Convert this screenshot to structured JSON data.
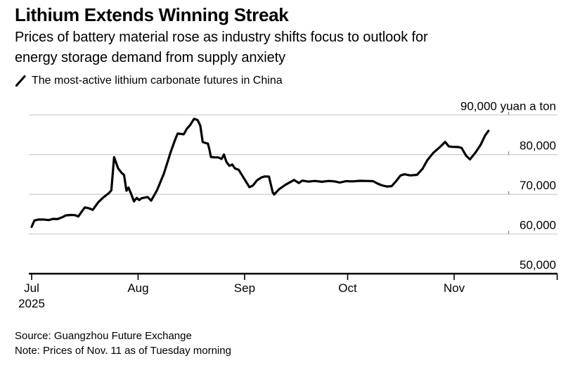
{
  "header": {
    "title": "Lithium Extends Winning Streak",
    "subtitle_lines": [
      "Prices of battery material rose as industry shifts focus to outlook for",
      "energy storage demand from supply anxiety"
    ],
    "legend_label": "The most-active lithium carbonate futures in China"
  },
  "footer": {
    "source": "Source: Guangzhou Future Exchange",
    "note": "Note: Prices of Nov. 11 as of Tuesday morning"
  },
  "chart_data": {
    "type": "line",
    "title": "Lithium Extends Winning Streak",
    "ylabel_unit": "yuan a ton",
    "grid": true,
    "legend_position": "top-left",
    "colors": {
      "line": "#000000",
      "grid": "#cccccc",
      "grid_edge_tick": "#8a8a8a",
      "axis": "#000000",
      "text": "#000000",
      "background": "#ffffff"
    },
    "y_axis": {
      "min": 50000,
      "max": 90000,
      "ticks": [
        50000,
        60000,
        70000,
        80000,
        90000
      ],
      "unit_suffix": " yuan a ton",
      "side": "right"
    },
    "x_axis": {
      "start_day_label": "Jul 1 = day 0",
      "ticks": [
        {
          "label": "Jul",
          "day": 0,
          "year_label": "2025"
        },
        {
          "label": "Aug",
          "day": 31
        },
        {
          "label": "Sep",
          "day": 62
        },
        {
          "label": "Oct",
          "day": 92
        },
        {
          "label": "Nov",
          "day": 123
        }
      ],
      "axis_end_day": 153
    },
    "series": [
      {
        "name": "The most-active lithium carbonate futures in China",
        "color": "#000000",
        "points": [
          [
            0,
            61800
          ],
          [
            0.8,
            63400
          ],
          [
            2,
            63650
          ],
          [
            3.5,
            63650
          ],
          [
            5,
            63500
          ],
          [
            6.2,
            63800
          ],
          [
            7.5,
            63750
          ],
          [
            9,
            64250
          ],
          [
            10,
            64700
          ],
          [
            11.5,
            64800
          ],
          [
            12.6,
            64750
          ],
          [
            13.6,
            64400
          ],
          [
            14.8,
            65900
          ],
          [
            15.5,
            66700
          ],
          [
            16.6,
            66500
          ],
          [
            17.8,
            66100
          ],
          [
            19.4,
            68000
          ],
          [
            21,
            69300
          ],
          [
            22.5,
            70300
          ],
          [
            23.2,
            71000
          ],
          [
            24,
            79350
          ],
          [
            25.2,
            76500
          ],
          [
            26.3,
            75300
          ],
          [
            26.9,
            74900
          ],
          [
            27.6,
            70900
          ],
          [
            28.2,
            71700
          ],
          [
            28.9,
            70250
          ],
          [
            29.8,
            68200
          ],
          [
            30.6,
            69100
          ],
          [
            31.3,
            68550
          ],
          [
            32,
            69000
          ],
          [
            32.8,
            69150
          ],
          [
            33.8,
            69300
          ],
          [
            34.8,
            68400
          ],
          [
            36.5,
            71000
          ],
          [
            38.5,
            75200
          ],
          [
            40.5,
            80700
          ],
          [
            41.8,
            83800
          ],
          [
            42.5,
            85300
          ],
          [
            43.5,
            85200
          ],
          [
            44.3,
            85100
          ],
          [
            45.1,
            86400
          ],
          [
            46.2,
            87500
          ],
          [
            47.3,
            89000
          ],
          [
            48.3,
            88700
          ],
          [
            49.1,
            87300
          ],
          [
            49.8,
            83200
          ],
          [
            50.7,
            82900
          ],
          [
            51.3,
            82800
          ],
          [
            51.8,
            81100
          ],
          [
            52.2,
            79400
          ],
          [
            53.2,
            79300
          ],
          [
            54.3,
            79300
          ],
          [
            55.3,
            78900
          ],
          [
            56,
            80000
          ],
          [
            56.7,
            78200
          ],
          [
            57.6,
            77150
          ],
          [
            58.4,
            77500
          ],
          [
            59.2,
            76500
          ],
          [
            60.3,
            76150
          ],
          [
            61.4,
            74600
          ],
          [
            62.4,
            73200
          ],
          [
            63.4,
            71800
          ],
          [
            64.4,
            72200
          ],
          [
            65.6,
            73500
          ],
          [
            66.8,
            74200
          ],
          [
            67.8,
            74500
          ],
          [
            69.1,
            74450
          ],
          [
            70.2,
            70450
          ],
          [
            70.6,
            69950
          ],
          [
            72,
            71250
          ],
          [
            74,
            72450
          ],
          [
            76.4,
            73600
          ],
          [
            77.8,
            72850
          ],
          [
            78.8,
            73450
          ],
          [
            80.5,
            73200
          ],
          [
            82.5,
            73350
          ],
          [
            84.5,
            73150
          ],
          [
            86.5,
            73350
          ],
          [
            88.2,
            73250
          ],
          [
            89.7,
            72950
          ],
          [
            91.5,
            73300
          ],
          [
            93.5,
            73250
          ],
          [
            95.5,
            73400
          ],
          [
            97.5,
            73350
          ],
          [
            99.4,
            73300
          ],
          [
            100.7,
            72700
          ],
          [
            102,
            72250
          ],
          [
            103.4,
            71950
          ],
          [
            104.8,
            72050
          ],
          [
            106.1,
            73300
          ],
          [
            107.4,
            74750
          ],
          [
            108.6,
            75050
          ],
          [
            110.2,
            74750
          ],
          [
            112.2,
            74900
          ],
          [
            113.8,
            76400
          ],
          [
            115.2,
            78600
          ],
          [
            117,
            80500
          ],
          [
            119,
            82000
          ],
          [
            120.4,
            83200
          ],
          [
            121.4,
            82100
          ],
          [
            122.3,
            81950
          ],
          [
            124.3,
            81900
          ],
          [
            125.2,
            81650
          ],
          [
            126.5,
            79700
          ],
          [
            127.6,
            78800
          ],
          [
            129.3,
            80600
          ],
          [
            130.8,
            82600
          ],
          [
            132,
            84800
          ],
          [
            133,
            86000
          ]
        ]
      }
    ]
  }
}
